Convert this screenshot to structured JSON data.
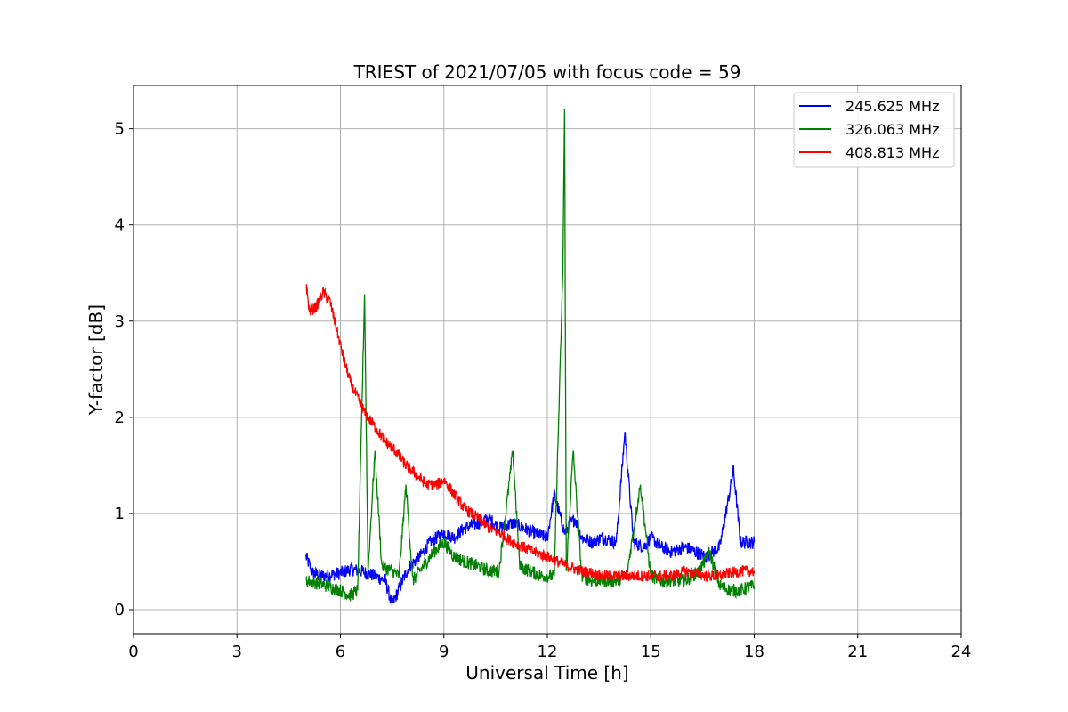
{
  "chart_data": {
    "type": "line",
    "title": "TRIEST of 2021/07/05 with focus code = 59",
    "xlabel": "Universal Time [h]",
    "ylabel": "Y-factor [dB]",
    "xlim": [
      0,
      24
    ],
    "ylim": [
      -0.25,
      5.45
    ],
    "xticks": [
      0,
      3,
      6,
      9,
      12,
      15,
      18,
      21,
      24
    ],
    "yticks": [
      0,
      1,
      2,
      3,
      4,
      5
    ],
    "grid": true,
    "legend_position": "top-right",
    "series": [
      {
        "name": "245.625 MHz",
        "color": "#0000ff",
        "points": [
          [
            5.0,
            0.55
          ],
          [
            5.2,
            0.38
          ],
          [
            5.5,
            0.35
          ],
          [
            6.0,
            0.38
          ],
          [
            6.3,
            0.42
          ],
          [
            6.6,
            0.4
          ],
          [
            7.0,
            0.35
          ],
          [
            7.3,
            0.3
          ],
          [
            7.5,
            0.05
          ],
          [
            7.8,
            0.3
          ],
          [
            8.0,
            0.45
          ],
          [
            8.3,
            0.55
          ],
          [
            8.6,
            0.7
          ],
          [
            9.0,
            0.8
          ],
          [
            9.3,
            0.75
          ],
          [
            9.6,
            0.85
          ],
          [
            10.0,
            0.9
          ],
          [
            10.3,
            0.95
          ],
          [
            10.6,
            0.85
          ],
          [
            11.0,
            0.9
          ],
          [
            11.3,
            0.85
          ],
          [
            11.6,
            0.8
          ],
          [
            12.0,
            0.75
          ],
          [
            12.2,
            1.2
          ],
          [
            12.5,
            0.8
          ],
          [
            12.8,
            0.95
          ],
          [
            13.0,
            0.75
          ],
          [
            13.3,
            0.7
          ],
          [
            13.6,
            0.75
          ],
          [
            14.0,
            0.7
          ],
          [
            14.25,
            1.85
          ],
          [
            14.5,
            0.7
          ],
          [
            14.8,
            0.65
          ],
          [
            15.0,
            0.75
          ],
          [
            15.3,
            0.65
          ],
          [
            15.6,
            0.6
          ],
          [
            16.0,
            0.65
          ],
          [
            16.3,
            0.6
          ],
          [
            16.6,
            0.55
          ],
          [
            17.0,
            0.65
          ],
          [
            17.4,
            1.45
          ],
          [
            17.6,
            0.7
          ],
          [
            18.0,
            0.7
          ]
        ]
      },
      {
        "name": "326.063 MHz",
        "color": "#008000",
        "points": [
          [
            5.0,
            0.3
          ],
          [
            5.3,
            0.28
          ],
          [
            5.6,
            0.25
          ],
          [
            6.0,
            0.2
          ],
          [
            6.3,
            0.15
          ],
          [
            6.5,
            0.2
          ],
          [
            6.7,
            3.28
          ],
          [
            6.8,
            0.4
          ],
          [
            7.0,
            1.65
          ],
          [
            7.2,
            0.45
          ],
          [
            7.5,
            0.4
          ],
          [
            7.7,
            0.35
          ],
          [
            7.9,
            1.3
          ],
          [
            8.1,
            0.3
          ],
          [
            8.4,
            0.45
          ],
          [
            8.7,
            0.6
          ],
          [
            9.0,
            0.7
          ],
          [
            9.3,
            0.55
          ],
          [
            9.6,
            0.5
          ],
          [
            10.0,
            0.45
          ],
          [
            10.3,
            0.4
          ],
          [
            10.6,
            0.4
          ],
          [
            11.0,
            1.65
          ],
          [
            11.2,
            0.45
          ],
          [
            11.5,
            0.4
          ],
          [
            11.8,
            0.35
          ],
          [
            12.2,
            0.35
          ],
          [
            12.45,
            3.5
          ],
          [
            12.5,
            5.2
          ],
          [
            12.55,
            0.4
          ],
          [
            12.75,
            1.65
          ],
          [
            13.0,
            0.35
          ],
          [
            13.3,
            0.3
          ],
          [
            13.6,
            0.3
          ],
          [
            14.0,
            0.3
          ],
          [
            14.3,
            0.35
          ],
          [
            14.7,
            1.3
          ],
          [
            15.0,
            0.35
          ],
          [
            15.3,
            0.3
          ],
          [
            15.6,
            0.3
          ],
          [
            16.0,
            0.3
          ],
          [
            16.4,
            0.4
          ],
          [
            16.7,
            0.6
          ],
          [
            17.0,
            0.25
          ],
          [
            17.3,
            0.2
          ],
          [
            17.6,
            0.2
          ],
          [
            18.0,
            0.25
          ]
        ]
      },
      {
        "name": "408.813 MHz",
        "color": "#ff0000",
        "points": [
          [
            5.0,
            3.4
          ],
          [
            5.1,
            3.1
          ],
          [
            5.3,
            3.15
          ],
          [
            5.5,
            3.3
          ],
          [
            5.7,
            3.2
          ],
          [
            5.9,
            2.9
          ],
          [
            6.1,
            2.6
          ],
          [
            6.3,
            2.35
          ],
          [
            6.5,
            2.2
          ],
          [
            6.7,
            2.05
          ],
          [
            7.0,
            1.9
          ],
          [
            7.3,
            1.75
          ],
          [
            7.6,
            1.65
          ],
          [
            7.9,
            1.5
          ],
          [
            8.2,
            1.4
          ],
          [
            8.5,
            1.3
          ],
          [
            8.8,
            1.3
          ],
          [
            9.0,
            1.35
          ],
          [
            9.3,
            1.2
          ],
          [
            9.6,
            1.05
          ],
          [
            10.0,
            0.95
          ],
          [
            10.3,
            0.85
          ],
          [
            10.6,
            0.8
          ],
          [
            11.0,
            0.7
          ],
          [
            11.3,
            0.65
          ],
          [
            11.6,
            0.6
          ],
          [
            12.0,
            0.55
          ],
          [
            12.3,
            0.5
          ],
          [
            12.6,
            0.45
          ],
          [
            13.0,
            0.4
          ],
          [
            13.3,
            0.38
          ],
          [
            13.6,
            0.35
          ],
          [
            14.0,
            0.35
          ],
          [
            14.3,
            0.35
          ],
          [
            14.6,
            0.35
          ],
          [
            15.0,
            0.35
          ],
          [
            15.3,
            0.35
          ],
          [
            15.6,
            0.35
          ],
          [
            16.0,
            0.4
          ],
          [
            16.3,
            0.38
          ],
          [
            16.6,
            0.35
          ],
          [
            17.0,
            0.35
          ],
          [
            17.3,
            0.38
          ],
          [
            17.6,
            0.4
          ],
          [
            18.0,
            0.4
          ]
        ]
      }
    ]
  }
}
